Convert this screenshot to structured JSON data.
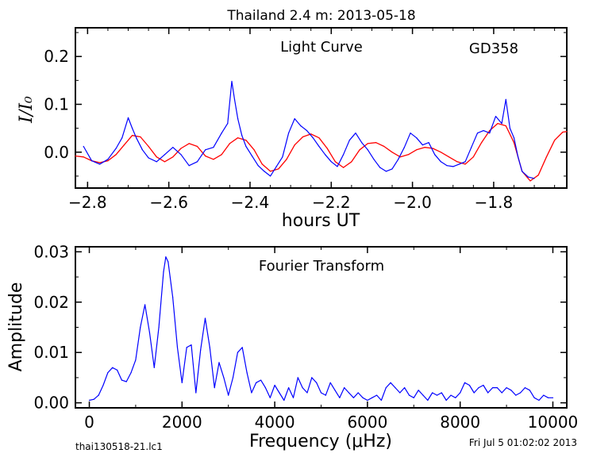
{
  "figure": {
    "title": "Thailand 2.4 m:  2013-05-18",
    "footer_left": "thai130518-21.lc1",
    "footer_right": "Fri Jul  5 01:02:02 2013"
  },
  "chart_data": [
    {
      "type": "line",
      "title": "Light Curve",
      "annotation": "GD358",
      "xlabel": "hours UT",
      "ylabel": "I/I₀",
      "xlim": [
        -2.83,
        -1.62
      ],
      "ylim": [
        -0.075,
        0.26
      ],
      "xticks": [
        -2.8,
        -2.6,
        -2.4,
        -2.2,
        -2.0,
        -1.8
      ],
      "xticklabels": [
        "−2.8",
        "−2.6",
        "−2.4",
        "−2.2",
        "−2.0",
        "−1.8"
      ],
      "yticks": [
        0.0,
        0.1,
        0.2
      ],
      "yticklabels": [
        "0.0",
        "0.1",
        "0.2"
      ],
      "colors": {
        "data": "#0000ff",
        "fit": "#ff0000"
      },
      "series": [
        {
          "role": "data",
          "x": [
            -2.81,
            -2.79,
            -2.77,
            -2.75,
            -2.73,
            -2.715,
            -2.7,
            -2.69,
            -2.68,
            -2.665,
            -2.65,
            -2.63,
            -2.61,
            -2.59,
            -2.57,
            -2.55,
            -2.53,
            -2.51,
            -2.49,
            -2.47,
            -2.455,
            -2.445,
            -2.438,
            -2.43,
            -2.42,
            -2.41,
            -2.395,
            -2.38,
            -2.365,
            -2.35,
            -2.335,
            -2.32,
            -2.305,
            -2.29,
            -2.275,
            -2.26,
            -2.245,
            -2.23,
            -2.215,
            -2.2,
            -2.185,
            -2.17,
            -2.155,
            -2.14,
            -2.125,
            -2.11,
            -2.095,
            -2.08,
            -2.065,
            -2.05,
            -2.035,
            -2.02,
            -2.005,
            -1.99,
            -1.975,
            -1.96,
            -1.945,
            -1.93,
            -1.915,
            -1.9,
            -1.885,
            -1.87,
            -1.855,
            -1.84,
            -1.825,
            -1.81,
            -1.795,
            -1.78,
            -1.77,
            -1.76,
            -1.75,
            -1.74,
            -1.73,
            -1.715,
            -1.7
          ],
          "values": [
            0.012,
            -0.018,
            -0.025,
            -0.015,
            0.008,
            0.03,
            0.072,
            0.05,
            0.03,
            0.005,
            -0.012,
            -0.02,
            -0.005,
            0.01,
            -0.005,
            -0.028,
            -0.02,
            0.005,
            0.01,
            0.04,
            0.06,
            0.148,
            0.11,
            0.07,
            0.035,
            0.012,
            -0.008,
            -0.028,
            -0.04,
            -0.05,
            -0.03,
            -0.01,
            0.04,
            0.07,
            0.055,
            0.045,
            0.03,
            0.012,
            -0.005,
            -0.02,
            -0.03,
            -0.005,
            0.025,
            0.04,
            0.02,
            0.005,
            -0.015,
            -0.032,
            -0.04,
            -0.035,
            -0.015,
            0.01,
            0.04,
            0.03,
            0.015,
            0.02,
            -0.005,
            -0.02,
            -0.028,
            -0.03,
            -0.025,
            -0.02,
            0.01,
            0.04,
            0.045,
            0.04,
            0.075,
            0.06,
            0.11,
            0.05,
            0.03,
            -0.01,
            -0.04,
            -0.052,
            -0.055
          ]
        },
        {
          "role": "fit",
          "x": [
            -2.83,
            -2.81,
            -2.79,
            -2.77,
            -2.75,
            -2.73,
            -2.71,
            -2.69,
            -2.67,
            -2.65,
            -2.63,
            -2.61,
            -2.59,
            -2.57,
            -2.55,
            -2.53,
            -2.51,
            -2.49,
            -2.47,
            -2.45,
            -2.43,
            -2.41,
            -2.39,
            -2.37,
            -2.35,
            -2.33,
            -2.31,
            -2.29,
            -2.27,
            -2.25,
            -2.23,
            -2.21,
            -2.19,
            -2.17,
            -2.15,
            -2.13,
            -2.11,
            -2.09,
            -2.07,
            -2.05,
            -2.03,
            -2.01,
            -1.99,
            -1.97,
            -1.95,
            -1.93,
            -1.91,
            -1.89,
            -1.87,
            -1.85,
            -1.83,
            -1.81,
            -1.79,
            -1.77,
            -1.75,
            -1.73,
            -1.71,
            -1.69,
            -1.67,
            -1.65,
            -1.63,
            -1.62
          ],
          "values": [
            -0.008,
            -0.01,
            -0.018,
            -0.022,
            -0.018,
            -0.005,
            0.015,
            0.035,
            0.032,
            0.012,
            -0.01,
            -0.02,
            -0.01,
            0.008,
            0.018,
            0.012,
            -0.008,
            -0.015,
            -0.005,
            0.018,
            0.03,
            0.025,
            0.005,
            -0.025,
            -0.04,
            -0.035,
            -0.015,
            0.015,
            0.032,
            0.038,
            0.03,
            0.008,
            -0.02,
            -0.032,
            -0.02,
            0.005,
            0.018,
            0.02,
            0.012,
            0.0,
            -0.01,
            -0.005,
            0.005,
            0.01,
            0.008,
            0.0,
            -0.01,
            -0.02,
            -0.025,
            -0.01,
            0.02,
            0.045,
            0.06,
            0.055,
            0.02,
            -0.04,
            -0.06,
            -0.048,
            -0.01,
            0.025,
            0.042,
            0.043
          ]
        }
      ]
    },
    {
      "type": "line",
      "title": "Fourier Transform",
      "xlabel": "Frequency (μHz)",
      "ylabel": "Amplitude",
      "xlim": [
        -300,
        10300
      ],
      "ylim": [
        -0.001,
        0.031
      ],
      "xticks": [
        0,
        2000,
        4000,
        6000,
        8000,
        10000
      ],
      "xticklabels": [
        "0",
        "2000",
        "4000",
        "6000",
        "8000",
        "10000"
      ],
      "yticks": [
        0.0,
        0.01,
        0.02,
        0.03
      ],
      "yticklabels": [
        "0.00",
        "0.01",
        "0.02",
        "0.03"
      ],
      "colors": {
        "data": "#0000ff"
      },
      "series": [
        {
          "role": "data",
          "x": [
            0,
            100,
            200,
            300,
            400,
            500,
            600,
            700,
            800,
            900,
            1000,
            1100,
            1200,
            1300,
            1400,
            1500,
            1600,
            1650,
            1700,
            1800,
            1900,
            2000,
            2100,
            2200,
            2300,
            2400,
            2500,
            2600,
            2700,
            2800,
            2900,
            3000,
            3100,
            3200,
            3300,
            3400,
            3500,
            3600,
            3700,
            3800,
            3900,
            4000,
            4100,
            4200,
            4300,
            4400,
            4500,
            4600,
            4700,
            4800,
            4900,
            5000,
            5100,
            5200,
            5300,
            5400,
            5500,
            5600,
            5700,
            5800,
            5900,
            6000,
            6100,
            6200,
            6300,
            6400,
            6500,
            6600,
            6700,
            6800,
            6900,
            7000,
            7100,
            7200,
            7300,
            7400,
            7500,
            7600,
            7700,
            7800,
            7900,
            8000,
            8100,
            8200,
            8300,
            8400,
            8500,
            8600,
            8700,
            8800,
            8900,
            9000,
            9100,
            9200,
            9300,
            9400,
            9500,
            9600,
            9700,
            9800,
            9900,
            10000
          ],
          "values": [
            0.0005,
            0.0007,
            0.0015,
            0.0035,
            0.006,
            0.007,
            0.0065,
            0.0045,
            0.0042,
            0.006,
            0.0085,
            0.015,
            0.0195,
            0.014,
            0.007,
            0.015,
            0.026,
            0.029,
            0.028,
            0.021,
            0.011,
            0.004,
            0.011,
            0.0115,
            0.002,
            0.0105,
            0.0168,
            0.011,
            0.003,
            0.008,
            0.005,
            0.0015,
            0.005,
            0.01,
            0.011,
            0.006,
            0.002,
            0.004,
            0.0045,
            0.003,
            0.001,
            0.0035,
            0.002,
            0.0005,
            0.003,
            0.001,
            0.005,
            0.003,
            0.002,
            0.005,
            0.004,
            0.002,
            0.0015,
            0.004,
            0.0025,
            0.001,
            0.003,
            0.002,
            0.001,
            0.002,
            0.001,
            0.0005,
            0.001,
            0.0015,
            0.0005,
            0.003,
            0.004,
            0.003,
            0.002,
            0.003,
            0.0015,
            0.001,
            0.0025,
            0.0015,
            0.0005,
            0.002,
            0.0015,
            0.002,
            0.0005,
            0.0015,
            0.001,
            0.002,
            0.004,
            0.0035,
            0.002,
            0.003,
            0.0035,
            0.002,
            0.003,
            0.003,
            0.002,
            0.003,
            0.0025,
            0.0015,
            0.002,
            0.003,
            0.0025,
            0.001,
            0.0005,
            0.0015,
            0.001,
            0.001
          ]
        }
      ]
    }
  ]
}
